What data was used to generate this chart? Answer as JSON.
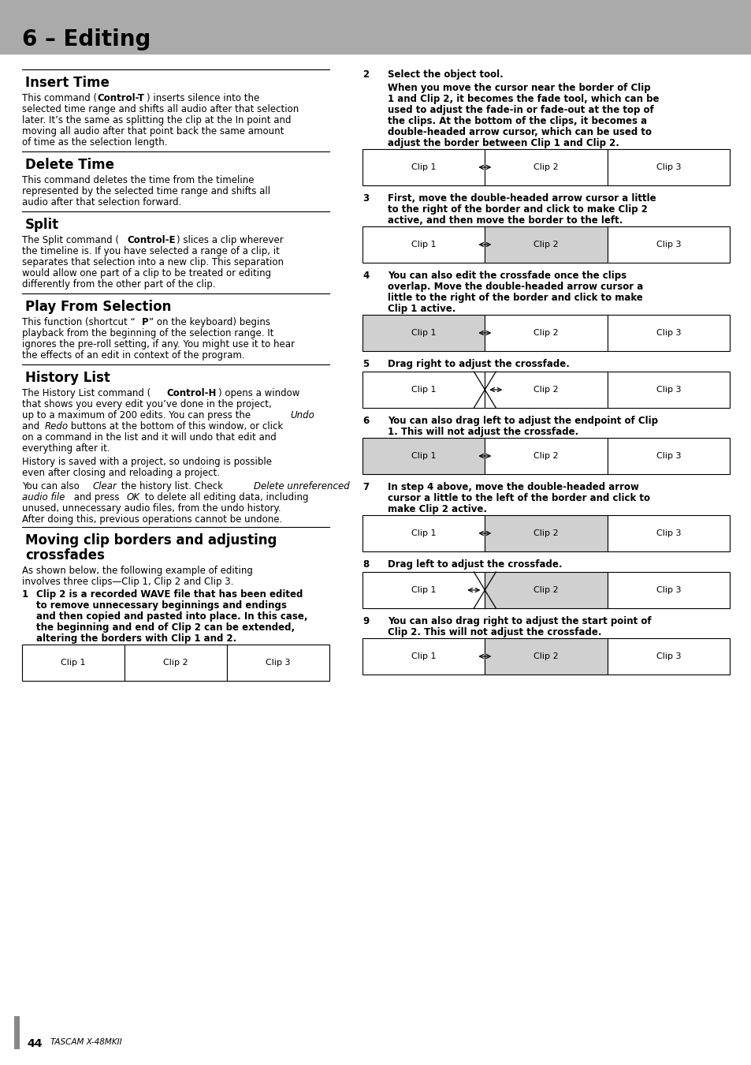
{
  "title": "6 – Editing",
  "title_bg": "#aaaaaa",
  "page_bg": "#ffffff",
  "footer_num": "44",
  "footer_text": "TASCAM X-48MKII"
}
